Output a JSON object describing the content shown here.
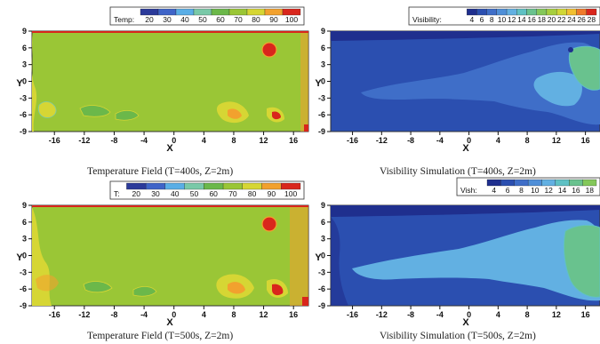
{
  "panels": [
    {
      "id": "temp-400",
      "caption": "Temperature Field (T=400s, Z=2m)",
      "legend": {
        "label": "Temp:",
        "levels": [
          "20",
          "30",
          "40",
          "50",
          "60",
          "70",
          "80",
          "90",
          "100"
        ],
        "colors": [
          "#2b3a9a",
          "#3f64c8",
          "#5aaee6",
          "#79c9a8",
          "#6bb84a",
          "#9ac636",
          "#d6d634",
          "#f2a12e",
          "#d9261c"
        ]
      }
    },
    {
      "id": "vis-400",
      "caption": "Visibility Simulation (T=400s, Z=2m)",
      "legend": {
        "label": "Visibility:",
        "levels": [
          "4",
          "6",
          "8",
          "10",
          "12",
          "14",
          "16",
          "18",
          "20",
          "22",
          "24",
          "26",
          "28"
        ],
        "colors": [
          "#1f2f8e",
          "#2b4fb0",
          "#3f6ec8",
          "#4f8fd8",
          "#62b0e2",
          "#5fc1c4",
          "#69c28e",
          "#84c85a",
          "#a6cf3e",
          "#d0d736",
          "#f1c030",
          "#ef7a2a",
          "#d9261c"
        ]
      }
    },
    {
      "id": "temp-500",
      "caption": "Temperature Field (T=500s, Z=2m)",
      "legend": {
        "label": "T:",
        "levels": [
          "20",
          "30",
          "40",
          "50",
          "60",
          "70",
          "80",
          "90",
          "100"
        ],
        "colors": [
          "#2b3a9a",
          "#3f64c8",
          "#5aaee6",
          "#79c9a8",
          "#6bb84a",
          "#9ac636",
          "#d6d634",
          "#f2a12e",
          "#d9261c"
        ]
      }
    },
    {
      "id": "vis-500",
      "caption": "Visibility Simulation (T=500s, Z=2m)",
      "legend": {
        "label": "Vish:",
        "levels": [
          "4",
          "6",
          "8",
          "10",
          "12",
          "14",
          "16",
          "18"
        ],
        "colors": [
          "#1f2f8e",
          "#2b4fb0",
          "#3f6ec8",
          "#4f8fd8",
          "#62b0e2",
          "#5fc1c4",
          "#69c28e",
          "#84c85a"
        ]
      }
    }
  ],
  "chart_data": [
    {
      "type": "heatmap",
      "title": "",
      "xlabel": "X",
      "ylabel": "Y",
      "xticks": [
        "-16",
        "-12",
        "-8",
        "-4",
        "0",
        "4",
        "8",
        "12",
        "16"
      ],
      "yticks": [
        "9",
        "6",
        "3",
        "0",
        "-3",
        "-6",
        "-9"
      ],
      "xlim": [
        -19,
        18
      ],
      "ylim": [
        -9,
        9
      ],
      "colorbar_label": "Temp:",
      "colorbar_levels": [
        20,
        30,
        40,
        50,
        60,
        70,
        80,
        90,
        100
      ]
    },
    {
      "type": "heatmap",
      "title": "",
      "xlabel": "X",
      "ylabel": "Y",
      "xticks": [
        "-16",
        "-12",
        "-8",
        "-4",
        "0",
        "4",
        "8",
        "12",
        "16"
      ],
      "yticks": [
        "9",
        "6",
        "3",
        "0",
        "-3",
        "-6",
        "-9"
      ],
      "xlim": [
        -19,
        18
      ],
      "ylim": [
        -9,
        9
      ],
      "colorbar_label": "Visibility:",
      "colorbar_levels": [
        4,
        6,
        8,
        10,
        12,
        14,
        16,
        18,
        20,
        22,
        24,
        26,
        28
      ]
    },
    {
      "type": "heatmap",
      "title": "",
      "xlabel": "X",
      "ylabel": "Y",
      "xticks": [
        "-16",
        "-12",
        "-8",
        "-4",
        "0",
        "4",
        "8",
        "12",
        "16"
      ],
      "yticks": [
        "9",
        "6",
        "3",
        "0",
        "-3",
        "-6",
        "-9"
      ],
      "xlim": [
        -19,
        18
      ],
      "ylim": [
        -9,
        9
      ],
      "colorbar_label": "T:",
      "colorbar_levels": [
        20,
        30,
        40,
        50,
        60,
        70,
        80,
        90,
        100
      ]
    },
    {
      "type": "heatmap",
      "title": "",
      "xlabel": "X",
      "ylabel": "Y",
      "xticks": [
        "-16",
        "-12",
        "-8",
        "-4",
        "0",
        "4",
        "8",
        "12",
        "16"
      ],
      "yticks": [
        "9",
        "6",
        "3",
        "0",
        "-3",
        "-6",
        "-9"
      ],
      "xlim": [
        -19,
        18
      ],
      "ylim": [
        -9,
        9
      ],
      "colorbar_label": "Vish:",
      "colorbar_levels": [
        4,
        6,
        8,
        10,
        12,
        14,
        16,
        18
      ]
    }
  ]
}
